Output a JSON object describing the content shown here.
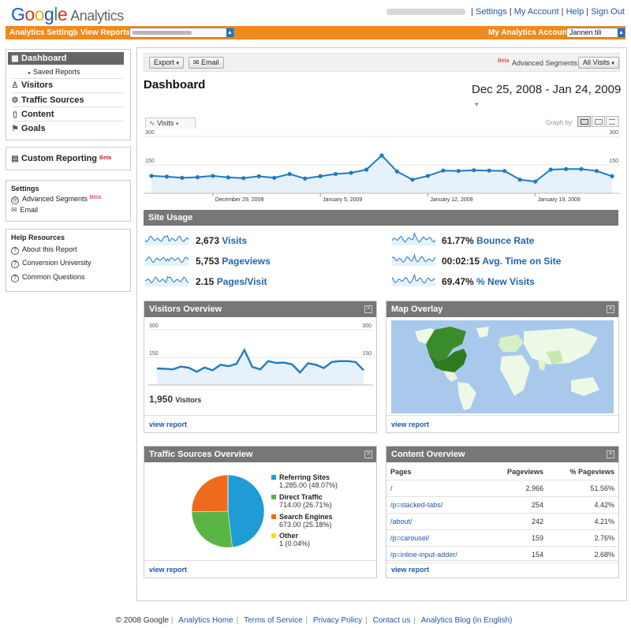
{
  "header": {
    "logo_brand": [
      "G",
      "o",
      "o",
      "g",
      "l",
      "e"
    ],
    "logo_product": "Analytics",
    "links": [
      "Settings",
      "My Account",
      "Help",
      "Sign Out"
    ]
  },
  "orangebar": {
    "settings": "Analytics Settings",
    "view_reports": "View Reports:",
    "my_accounts": "My Analytics Accounts:",
    "account_value": "Jannen tili"
  },
  "sidebar": {
    "dashboard": "Dashboard",
    "saved_reports": "Saved Reports",
    "visitors": "Visitors",
    "traffic_sources": "Traffic Sources",
    "content": "Content",
    "goals": "Goals",
    "custom_reporting": "Custom Reporting",
    "beta": "Beta",
    "settings_title": "Settings",
    "advanced_segments": "Advanced Segments",
    "email": "Email",
    "help_title": "Help Resources",
    "help_items": [
      "About this Report",
      "Conversion University",
      "Common Questions"
    ]
  },
  "toolbar": {
    "export": "Export",
    "email": "Email",
    "beta": "Beta",
    "advanced_segments": "Advanced Segments:",
    "segment_value": "All Visits"
  },
  "dashboard": {
    "title": "Dashboard",
    "date_range": "Dec 25, 2008 - Jan 24, 2009",
    "metric_select": "Visits",
    "graph_by": "Graph by:"
  },
  "chart_data": [
    {
      "type": "line",
      "title": "Visits",
      "ylim": [
        0,
        300
      ],
      "yticks": [
        "300",
        "150"
      ],
      "x_labels": [
        "December 29, 2008",
        "January 5, 2009",
        "January 12, 2009",
        "January 19, 2009"
      ],
      "values": [
        92,
        88,
        82,
        85,
        92,
        84,
        80,
        90,
        82,
        102,
        78,
        90,
        102,
        108,
        125,
        200,
        115,
        72,
        92,
        120,
        118,
        122,
        120,
        118,
        72,
        62,
        125,
        128,
        128,
        118,
        90
      ],
      "color": "#1f7ac5"
    },
    {
      "type": "line",
      "title": "Visitors",
      "ylim": [
        0,
        300
      ],
      "yticks": [
        "300",
        "150"
      ],
      "values": [
        90,
        88,
        85,
        100,
        94,
        72,
        95,
        80,
        110,
        102,
        115,
        190,
        98,
        85,
        130,
        120,
        122,
        112,
        68,
        118,
        110,
        92,
        125,
        130,
        130,
        125,
        80
      ],
      "color": "#1f7ac5"
    },
    {
      "type": "pie",
      "title": "Traffic Sources Overview",
      "series": [
        {
          "name": "Referring Sites",
          "value": 1285.0,
          "percent": "48.07%",
          "color": "#1f9bd6"
        },
        {
          "name": "Direct Traffic",
          "value": 714.0,
          "percent": "26.71%",
          "color": "#5ab444"
        },
        {
          "name": "Search Engines",
          "value": 673.0,
          "percent": "25.18%",
          "color": "#ee6a1c"
        },
        {
          "name": "Other",
          "value": 1,
          "percent": "0.04%",
          "color": "#f3e019"
        }
      ]
    }
  ],
  "site_usage": {
    "title": "Site Usage",
    "metrics": [
      {
        "value": "2,673",
        "label": "Visits"
      },
      {
        "value": "5,753",
        "label": "Pageviews"
      },
      {
        "value": "2.15",
        "label": "Pages/Visit"
      },
      {
        "value": "61.77%",
        "label": "Bounce Rate"
      },
      {
        "value": "00:02:15",
        "label": "Avg. Time on Site"
      },
      {
        "value": "69.47%",
        "label": "% New Visits"
      }
    ]
  },
  "visitors_overview": {
    "title": "Visitors Overview",
    "total": "1,950",
    "label": "Visitors",
    "view_report": "view report"
  },
  "map_overlay": {
    "title": "Map Overlay",
    "view_report": "view report"
  },
  "traffic_sources": {
    "title": "Traffic Sources Overview",
    "view_report": "view report",
    "legend": [
      {
        "name": "Referring Sites",
        "detail": "1,285.00 (48.07%)"
      },
      {
        "name": "Direct Traffic",
        "detail": "714.00 (26.71%)"
      },
      {
        "name": "Search Engines",
        "detail": "673.00 (25.18%)"
      },
      {
        "name": "Other",
        "detail": "1 (0.04%)"
      }
    ]
  },
  "content_overview": {
    "title": "Content Overview",
    "view_report": "view report",
    "columns": [
      "Pages",
      "Pageviews",
      "% Pageviews"
    ],
    "rows": [
      [
        "/",
        "2,966",
        "51.56%"
      ],
      [
        "/p=stacked-tabs/",
        "254",
        "4.42%"
      ],
      [
        "/about/",
        "242",
        "4.21%"
      ],
      [
        "/p=carousel/",
        "159",
        "2.76%"
      ],
      [
        "/p=inline-input-adder/",
        "154",
        "2.68%"
      ]
    ]
  },
  "footer": {
    "copyright": "© 2008 Google",
    "links": [
      "Analytics Home",
      "Terms of Service",
      "Privacy Policy",
      "Contact us",
      "Analytics Blog (in English)"
    ]
  }
}
